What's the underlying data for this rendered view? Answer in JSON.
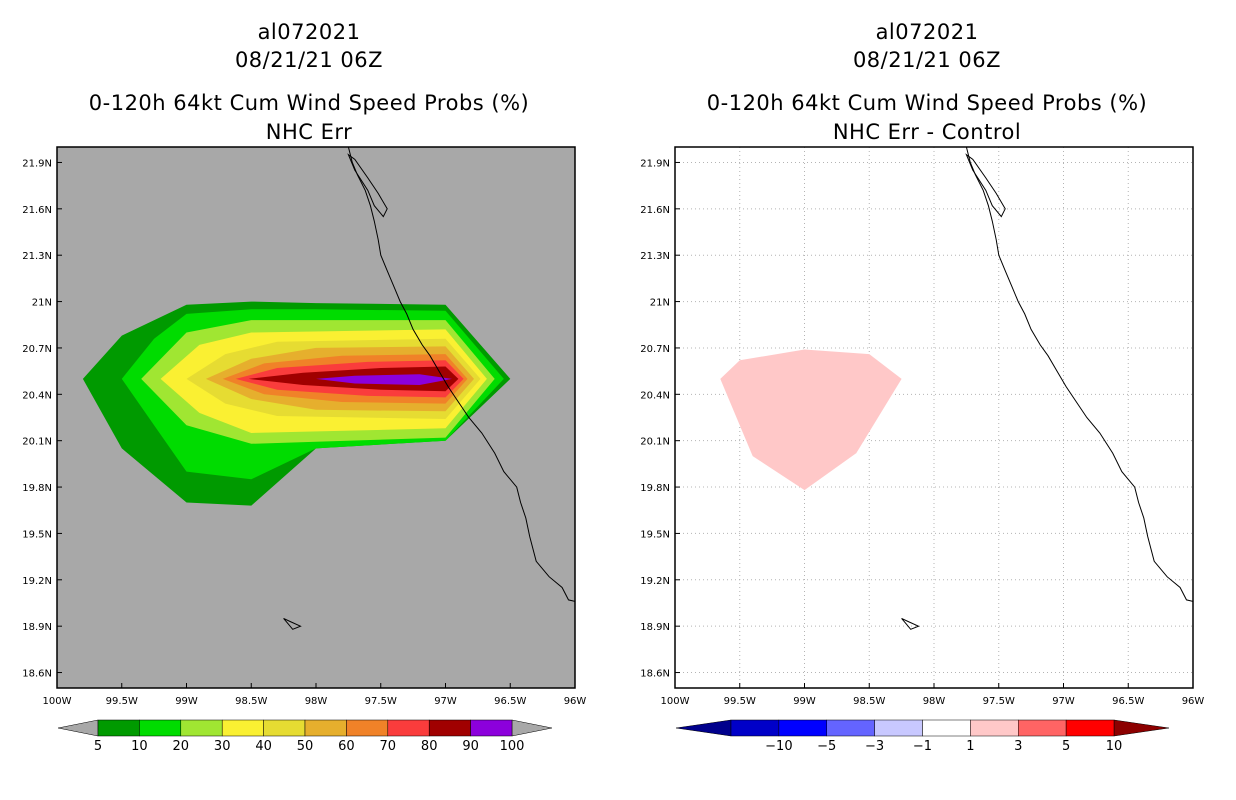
{
  "chart_data": [
    {
      "type": "contour-map",
      "title_lines": [
        "al072021",
        "08/21/21 06Z",
        "0-120h 64kt Cum Wind Speed Probs (%)",
        "NHC Err"
      ],
      "x_ticks": [
        "100W",
        "99.5W",
        "99W",
        "98.5W",
        "98W",
        "97.5W",
        "97W",
        "96.5W",
        "96W"
      ],
      "y_ticks": [
        "21.9N",
        "21.6N",
        "21.3N",
        "21N",
        "20.7N",
        "20.4N",
        "20.1N",
        "19.8N",
        "19.5N",
        "19.2N",
        "18.9N",
        "18.6N"
      ],
      "xlim": [
        -100,
        -96
      ],
      "ylim": [
        18.5,
        22
      ],
      "background": "#a8a8a8",
      "grid": false,
      "colorbar": {
        "labels": [
          "5",
          "10",
          "20",
          "30",
          "40",
          "50",
          "60",
          "70",
          "80",
          "90",
          "100"
        ],
        "colors": [
          "#009a00",
          "#00dc00",
          "#a0e632",
          "#faf032",
          "#e6dc32",
          "#e6af2d",
          "#f08228",
          "#fa3c3c",
          "#a00000",
          "#8c00dc"
        ],
        "end_color": "#a8a8a8"
      },
      "contours": [
        {
          "level": "5",
          "color": "#009a00",
          "points": [
            [
              -99.8,
              20.5
            ],
            [
              -99.5,
              20.78
            ],
            [
              -99,
              20.98
            ],
            [
              -98.5,
              21.0
            ],
            [
              -98,
              20.99
            ],
            [
              -97,
              20.98
            ],
            [
              -96.5,
              20.5
            ],
            [
              -97,
              20.1
            ],
            [
              -98,
              20.05
            ],
            [
              -98.5,
              19.68
            ],
            [
              -99,
              19.7
            ],
            [
              -99.5,
              20.05
            ]
          ]
        },
        {
          "level": "10",
          "color": "#00dc00",
          "points": [
            [
              -99.5,
              20.5
            ],
            [
              -99.25,
              20.76
            ],
            [
              -99,
              20.92
            ],
            [
              -98.5,
              20.95
            ],
            [
              -98,
              20.95
            ],
            [
              -97,
              20.94
            ],
            [
              -96.55,
              20.5
            ],
            [
              -97,
              20.1
            ],
            [
              -98,
              20.05
            ],
            [
              -98.5,
              19.85
            ],
            [
              -99,
              19.9
            ],
            [
              -99.25,
              20.2
            ]
          ]
        },
        {
          "level": "20",
          "color": "#a0e632",
          "points": [
            [
              -99.35,
              20.5
            ],
            [
              -99,
              20.8
            ],
            [
              -98.5,
              20.88
            ],
            [
              -97,
              20.88
            ],
            [
              -96.62,
              20.5
            ],
            [
              -97,
              20.12
            ],
            [
              -98.5,
              20.08
            ],
            [
              -99,
              20.2
            ]
          ]
        },
        {
          "level": "30",
          "color": "#faf032",
          "points": [
            [
              -99.2,
              20.5
            ],
            [
              -98.9,
              20.72
            ],
            [
              -98.5,
              20.8
            ],
            [
              -97,
              20.82
            ],
            [
              -96.68,
              20.5
            ],
            [
              -97,
              20.18
            ],
            [
              -98.5,
              20.15
            ],
            [
              -98.9,
              20.28
            ]
          ]
        },
        {
          "level": "40",
          "color": "#e6dc32",
          "points": [
            [
              -99.0,
              20.5
            ],
            [
              -98.7,
              20.66
            ],
            [
              -98.3,
              20.74
            ],
            [
              -97,
              20.76
            ],
            [
              -96.73,
              20.5
            ],
            [
              -97,
              20.24
            ],
            [
              -98.3,
              20.26
            ],
            [
              -98.7,
              20.34
            ]
          ]
        },
        {
          "level": "50",
          "color": "#e6af2d",
          "points": [
            [
              -98.85,
              20.5
            ],
            [
              -98.5,
              20.63
            ],
            [
              -98,
              20.7
            ],
            [
              -97,
              20.71
            ],
            [
              -96.78,
              20.5
            ],
            [
              -97,
              20.29
            ],
            [
              -98,
              20.3
            ],
            [
              -98.5,
              20.37
            ]
          ]
        },
        {
          "level": "60",
          "color": "#f08228",
          "points": [
            [
              -98.72,
              20.5
            ],
            [
              -98.4,
              20.6
            ],
            [
              -97.8,
              20.65
            ],
            [
              -97,
              20.66
            ],
            [
              -96.83,
              20.5
            ],
            [
              -97,
              20.34
            ],
            [
              -97.8,
              20.35
            ],
            [
              -98.4,
              20.4
            ]
          ]
        },
        {
          "level": "70",
          "color": "#fa3c3c",
          "points": [
            [
              -98.62,
              20.5
            ],
            [
              -98.3,
              20.57
            ],
            [
              -97.6,
              20.61
            ],
            [
              -97,
              20.62
            ],
            [
              -96.86,
              20.5
            ],
            [
              -97,
              20.38
            ],
            [
              -97.6,
              20.39
            ],
            [
              -98.3,
              20.43
            ]
          ]
        },
        {
          "level": "80",
          "color": "#a00000",
          "points": [
            [
              -98.52,
              20.5
            ],
            [
              -98.1,
              20.54
            ],
            [
              -97.5,
              20.57
            ],
            [
              -97,
              20.58
            ],
            [
              -96.9,
              20.5
            ],
            [
              -97,
              20.42
            ],
            [
              -97.5,
              20.43
            ],
            [
              -98.1,
              20.46
            ]
          ]
        },
        {
          "level": "90",
          "color": "#8c00dc",
          "points": [
            [
              -98.0,
              20.5
            ],
            [
              -97.7,
              20.52
            ],
            [
              -97.2,
              20.53
            ],
            [
              -96.95,
              20.5
            ],
            [
              -97.2,
              20.46
            ],
            [
              -97.7,
              20.47
            ]
          ]
        }
      ]
    },
    {
      "type": "contour-map",
      "title_lines": [
        "al072021",
        "08/21/21 06Z",
        "0-120h 64kt Cum Wind Speed Probs (%)",
        "NHC Err - Control"
      ],
      "x_ticks": [
        "100W",
        "99.5W",
        "99W",
        "98.5W",
        "98W",
        "97.5W",
        "97W",
        "96.5W",
        "96W"
      ],
      "y_ticks": [
        "21.9N",
        "21.6N",
        "21.3N",
        "21N",
        "20.7N",
        "20.4N",
        "20.1N",
        "19.8N",
        "19.5N",
        "19.2N",
        "18.9N",
        "18.6N"
      ],
      "xlim": [
        -100,
        -96
      ],
      "ylim": [
        18.5,
        22
      ],
      "background": "#ffffff",
      "grid": true,
      "colorbar": {
        "labels": [
          "−10",
          "−5",
          "−3",
          "−1",
          "1",
          "3",
          "5",
          "10"
        ],
        "colors": [
          "#0000c8",
          "#0000ff",
          "#6464ff",
          "#c8c8ff",
          "#ffffff",
          "#ffc8c8",
          "#ff6464",
          "#ff0000"
        ],
        "end_left": "#00008c",
        "end_right": "#8c0000"
      },
      "contours": [
        {
          "level": "1",
          "color": "#ffc8c8",
          "points": [
            [
              -99.65,
              20.5
            ],
            [
              -99.5,
              20.62
            ],
            [
              -99,
              20.69
            ],
            [
              -98.5,
              20.66
            ],
            [
              -98.25,
              20.5
            ],
            [
              -98.6,
              20.02
            ],
            [
              -99,
              19.78
            ],
            [
              -99.4,
              20.0
            ]
          ]
        }
      ]
    }
  ],
  "coastline": [
    [
      -97.75,
      22.0
    ],
    [
      -97.72,
      21.9
    ],
    [
      -97.68,
      21.82
    ],
    [
      -97.62,
      21.72
    ],
    [
      -97.58,
      21.62
    ],
    [
      -97.55,
      21.52
    ],
    [
      -97.52,
      21.4
    ],
    [
      -97.5,
      21.3
    ],
    [
      -97.45,
      21.2
    ],
    [
      -97.4,
      21.1
    ],
    [
      -97.35,
      21.0
    ],
    [
      -97.3,
      20.92
    ],
    [
      -97.25,
      20.82
    ],
    [
      -97.18,
      20.72
    ],
    [
      -97.12,
      20.65
    ],
    [
      -97.05,
      20.55
    ],
    [
      -96.98,
      20.45
    ],
    [
      -96.9,
      20.35
    ],
    [
      -96.82,
      20.25
    ],
    [
      -96.72,
      20.15
    ],
    [
      -96.62,
      20.02
    ],
    [
      -96.55,
      19.9
    ],
    [
      -96.45,
      19.8
    ],
    [
      -96.42,
      19.7
    ],
    [
      -96.38,
      19.6
    ],
    [
      -96.35,
      19.48
    ],
    [
      -96.3,
      19.32
    ],
    [
      -96.2,
      19.22
    ],
    [
      -96.1,
      19.15
    ],
    [
      -96.05,
      19.07
    ],
    [
      -96.0,
      19.06
    ]
  ],
  "lagoon": [
    [
      -97.75,
      21.95
    ],
    [
      -97.7,
      21.85
    ],
    [
      -97.6,
      21.72
    ],
    [
      -97.55,
      21.62
    ],
    [
      -97.48,
      21.55
    ],
    [
      -97.45,
      21.6
    ],
    [
      -97.52,
      21.7
    ],
    [
      -97.6,
      21.8
    ],
    [
      -97.7,
      21.92
    ]
  ],
  "island": [
    [
      -98.25,
      18.95
    ],
    [
      -98.2,
      18.93
    ],
    [
      -98.12,
      18.9
    ],
    [
      -98.18,
      18.88
    ],
    [
      -98.22,
      18.92
    ]
  ]
}
